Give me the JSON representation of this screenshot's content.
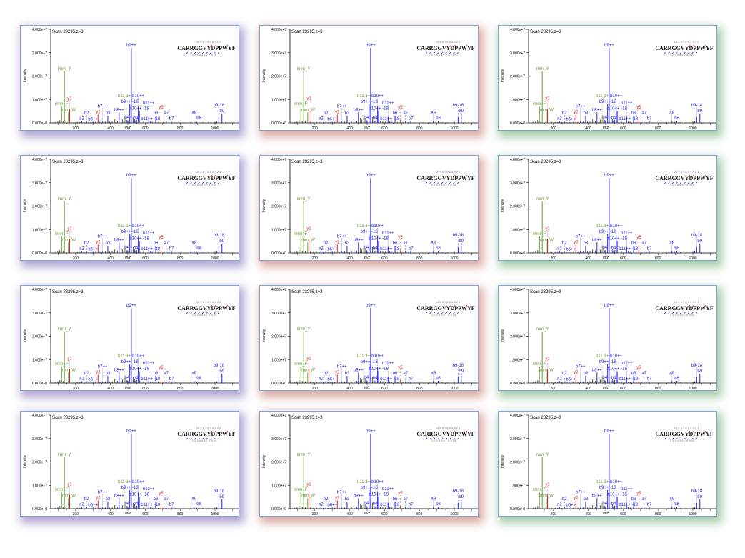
{
  "panel_accents": [
    "#6e5aaa",
    "#be645a",
    "#5aa064"
  ],
  "chart_data": {
    "type": "bar",
    "title": "Scan 23295,z=3",
    "xlabel": "m/z",
    "ylabel": "Intensity",
    "xlim": [
      60,
      1140
    ],
    "ylim": [
      0,
      40000000
    ],
    "xticks": [
      200,
      400,
      600,
      800,
      1000
    ],
    "yticks": [
      0,
      10000000,
      20000000,
      30000000,
      40000000
    ],
    "ytick_labels": [
      "0.000e+0",
      "1.000e+7",
      "2.000e+7",
      "3.000e+7",
      "4.000e+7"
    ],
    "sequence": "CARRGGVYDPPWYF",
    "y_ion_numbers": "10 9 8 7 6 5 4 3 2 1",
    "b_ion_numbers": "1 2 3 4 5 6 7 8 9 10",
    "colors": {
      "b": "#1f1fe0",
      "y": "#e01f1f",
      "imm": "#6a9a3a",
      "other": "#222222"
    },
    "peaks": [
      {
        "mz": 120,
        "intensity": 7000000,
        "type": "imm",
        "label": "imm_F"
      },
      {
        "mz": 136,
        "intensity": 22000000,
        "type": "imm",
        "label": "imm_Y"
      },
      {
        "mz": 159,
        "intensity": 4500000,
        "type": "imm",
        "label": "imm_W"
      },
      {
        "mz": 166,
        "intensity": 6000000,
        "type": "y",
        "label": "y1"
      },
      {
        "mz": 235,
        "intensity": 800000,
        "type": "b",
        "label": "a2"
      },
      {
        "mz": 263,
        "intensity": 600000,
        "type": "b",
        "label": "b2"
      },
      {
        "mz": 300,
        "intensity": 500000,
        "type": "b",
        "label": "b6++"
      },
      {
        "mz": 329,
        "intensity": 3500000,
        "type": "y",
        "label": "y2"
      },
      {
        "mz": 355,
        "intensity": 500000,
        "type": "b",
        "label": "b7++"
      },
      {
        "mz": 385,
        "intensity": 3000000,
        "type": "b",
        "label": "b3"
      },
      {
        "mz": 450,
        "intensity": 4500000,
        "type": "b",
        "label": "b8++"
      },
      {
        "mz": 480,
        "intensity": 2500000,
        "type": "imm",
        "label": "b11 3+"
      },
      {
        "mz": 495,
        "intensity": 1200000,
        "type": "b",
        "label": "b4"
      },
      {
        "mz": 511,
        "intensity": 8000000,
        "type": "b",
        "label": "b9++ -18"
      },
      {
        "mz": 520,
        "intensity": 32000000,
        "type": "b",
        "label": "b9++"
      },
      {
        "mz": 545,
        "intensity": 1000000,
        "type": "b",
        "label": "b4"
      },
      {
        "mz": 560,
        "intensity": 7000000,
        "type": "b",
        "label": "b10++"
      },
      {
        "mz": 566,
        "intensity": 5000000,
        "type": "b",
        "label": "b10++ -18"
      },
      {
        "mz": 620,
        "intensity": 2500000,
        "type": "b",
        "label": "b11++"
      },
      {
        "mz": 630,
        "intensity": 600000,
        "type": "b",
        "label": "b11++ -18"
      },
      {
        "mz": 660,
        "intensity": 3000000,
        "type": "b",
        "label": "b6"
      },
      {
        "mz": 690,
        "intensity": 1200000,
        "type": "y",
        "label": "y5"
      },
      {
        "mz": 720,
        "intensity": 600000,
        "type": "b",
        "label": "a7"
      },
      {
        "mz": 750,
        "intensity": 700000,
        "type": "b",
        "label": "b7"
      },
      {
        "mz": 880,
        "intensity": 800000,
        "type": "b",
        "label": "a8"
      },
      {
        "mz": 908,
        "intensity": 900000,
        "type": "b",
        "label": "b8"
      },
      {
        "mz": 1022,
        "intensity": 2500000,
        "type": "b",
        "label": "b9-18"
      },
      {
        "mz": 1040,
        "intensity": 4000000,
        "type": "b",
        "label": "b9"
      }
    ],
    "noise_peaks": [
      [
        85,
        400000
      ],
      [
        98,
        700000
      ],
      [
        110,
        1200000
      ],
      [
        128,
        900000
      ],
      [
        145,
        600000
      ],
      [
        175,
        500000
      ],
      [
        190,
        300000
      ],
      [
        210,
        400000
      ],
      [
        225,
        350000
      ],
      [
        248,
        300000
      ],
      [
        275,
        250000
      ],
      [
        290,
        300000
      ],
      [
        315,
        450000
      ],
      [
        340,
        400000
      ],
      [
        370,
        600000
      ],
      [
        395,
        500000
      ],
      [
        410,
        700000
      ],
      [
        425,
        1500000
      ],
      [
        440,
        900000
      ],
      [
        462,
        2200000
      ],
      [
        470,
        1400000
      ],
      [
        488,
        1800000
      ],
      [
        500,
        1000000
      ],
      [
        530,
        2500000
      ],
      [
        538,
        1800000
      ],
      [
        552,
        1300000
      ],
      [
        575,
        900000
      ],
      [
        590,
        700000
      ],
      [
        605,
        500000
      ],
      [
        640,
        450000
      ],
      [
        675,
        350000
      ],
      [
        705,
        300000
      ],
      [
        735,
        250000
      ],
      [
        770,
        200000
      ],
      [
        820,
        200000
      ],
      [
        860,
        250000
      ],
      [
        895,
        400000
      ],
      [
        930,
        300000
      ],
      [
        960,
        250000
      ],
      [
        1000,
        500000
      ],
      [
        1010,
        700000
      ],
      [
        1060,
        200000
      ],
      [
        1100,
        150000
      ]
    ]
  }
}
